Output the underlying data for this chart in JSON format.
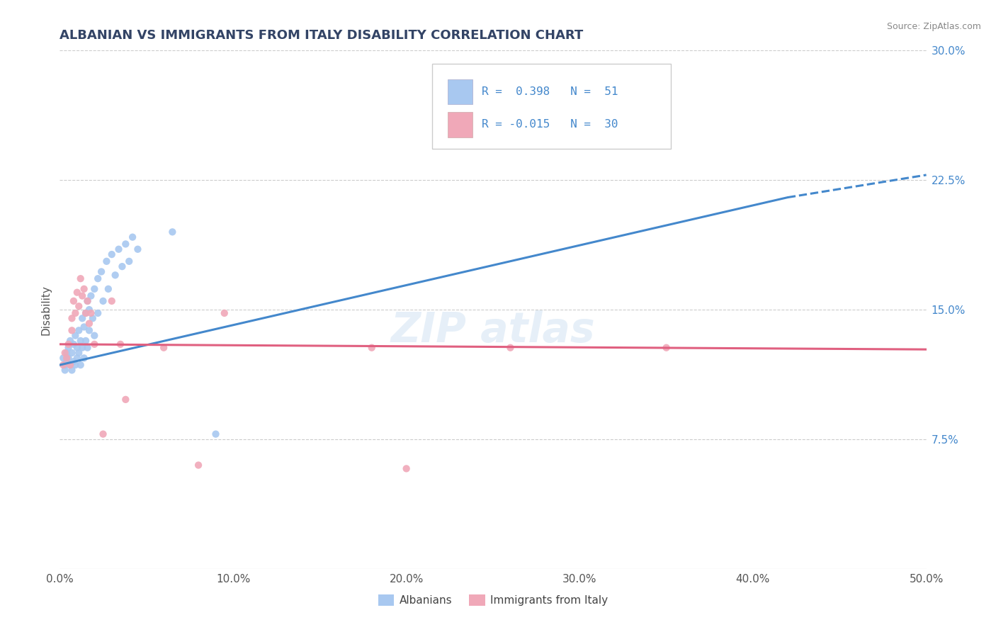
{
  "title": "ALBANIAN VS IMMIGRANTS FROM ITALY DISABILITY CORRELATION CHART",
  "source": "Source: ZipAtlas.com",
  "ylabel": "Disability",
  "xlim": [
    0.0,
    0.5
  ],
  "ylim": [
    0.0,
    0.3
  ],
  "ytick_vals": [
    0.075,
    0.15,
    0.225,
    0.3
  ],
  "ytick_labels": [
    "7.5%",
    "15.0%",
    "22.5%",
    "30.0%"
  ],
  "xtick_vals": [
    0.0,
    0.1,
    0.2,
    0.3,
    0.4,
    0.5
  ],
  "xtick_labels": [
    "0.0%",
    "10.0%",
    "20.0%",
    "30.0%",
    "40.0%",
    "50.0%"
  ],
  "color_albanians": "#a8c8f0",
  "color_italy": "#f0a8b8",
  "color_line_albanians": "#4488cc",
  "color_line_italy": "#e06080",
  "albanians_scatter": [
    [
      0.002,
      0.122
    ],
    [
      0.003,
      0.118
    ],
    [
      0.003,
      0.115
    ],
    [
      0.004,
      0.125
    ],
    [
      0.004,
      0.12
    ],
    [
      0.005,
      0.128
    ],
    [
      0.005,
      0.122
    ],
    [
      0.006,
      0.132
    ],
    [
      0.006,
      0.118
    ],
    [
      0.007,
      0.125
    ],
    [
      0.007,
      0.115
    ],
    [
      0.008,
      0.13
    ],
    [
      0.008,
      0.12
    ],
    [
      0.009,
      0.135
    ],
    [
      0.009,
      0.118
    ],
    [
      0.01,
      0.128
    ],
    [
      0.01,
      0.122
    ],
    [
      0.011,
      0.138
    ],
    [
      0.011,
      0.125
    ],
    [
      0.012,
      0.132
    ],
    [
      0.012,
      0.118
    ],
    [
      0.013,
      0.145
    ],
    [
      0.013,
      0.128
    ],
    [
      0.014,
      0.14
    ],
    [
      0.014,
      0.122
    ],
    [
      0.015,
      0.148
    ],
    [
      0.015,
      0.132
    ],
    [
      0.016,
      0.155
    ],
    [
      0.016,
      0.128
    ],
    [
      0.017,
      0.15
    ],
    [
      0.017,
      0.138
    ],
    [
      0.018,
      0.158
    ],
    [
      0.019,
      0.145
    ],
    [
      0.02,
      0.162
    ],
    [
      0.02,
      0.135
    ],
    [
      0.022,
      0.168
    ],
    [
      0.022,
      0.148
    ],
    [
      0.024,
      0.172
    ],
    [
      0.025,
      0.155
    ],
    [
      0.027,
      0.178
    ],
    [
      0.028,
      0.162
    ],
    [
      0.03,
      0.182
    ],
    [
      0.032,
      0.17
    ],
    [
      0.034,
      0.185
    ],
    [
      0.036,
      0.175
    ],
    [
      0.038,
      0.188
    ],
    [
      0.04,
      0.178
    ],
    [
      0.042,
      0.192
    ],
    [
      0.045,
      0.185
    ],
    [
      0.065,
      0.195
    ],
    [
      0.09,
      0.078
    ]
  ],
  "italy_scatter": [
    [
      0.002,
      0.118
    ],
    [
      0.003,
      0.125
    ],
    [
      0.004,
      0.122
    ],
    [
      0.005,
      0.13
    ],
    [
      0.006,
      0.118
    ],
    [
      0.007,
      0.145
    ],
    [
      0.007,
      0.138
    ],
    [
      0.008,
      0.155
    ],
    [
      0.009,
      0.148
    ],
    [
      0.01,
      0.16
    ],
    [
      0.011,
      0.152
    ],
    [
      0.012,
      0.168
    ],
    [
      0.013,
      0.158
    ],
    [
      0.014,
      0.162
    ],
    [
      0.015,
      0.148
    ],
    [
      0.016,
      0.155
    ],
    [
      0.017,
      0.142
    ],
    [
      0.018,
      0.148
    ],
    [
      0.02,
      0.13
    ],
    [
      0.025,
      0.078
    ],
    [
      0.03,
      0.155
    ],
    [
      0.035,
      0.13
    ],
    [
      0.038,
      0.098
    ],
    [
      0.06,
      0.128
    ],
    [
      0.08,
      0.06
    ],
    [
      0.095,
      0.148
    ],
    [
      0.18,
      0.128
    ],
    [
      0.2,
      0.058
    ],
    [
      0.26,
      0.128
    ],
    [
      0.35,
      0.128
    ]
  ]
}
